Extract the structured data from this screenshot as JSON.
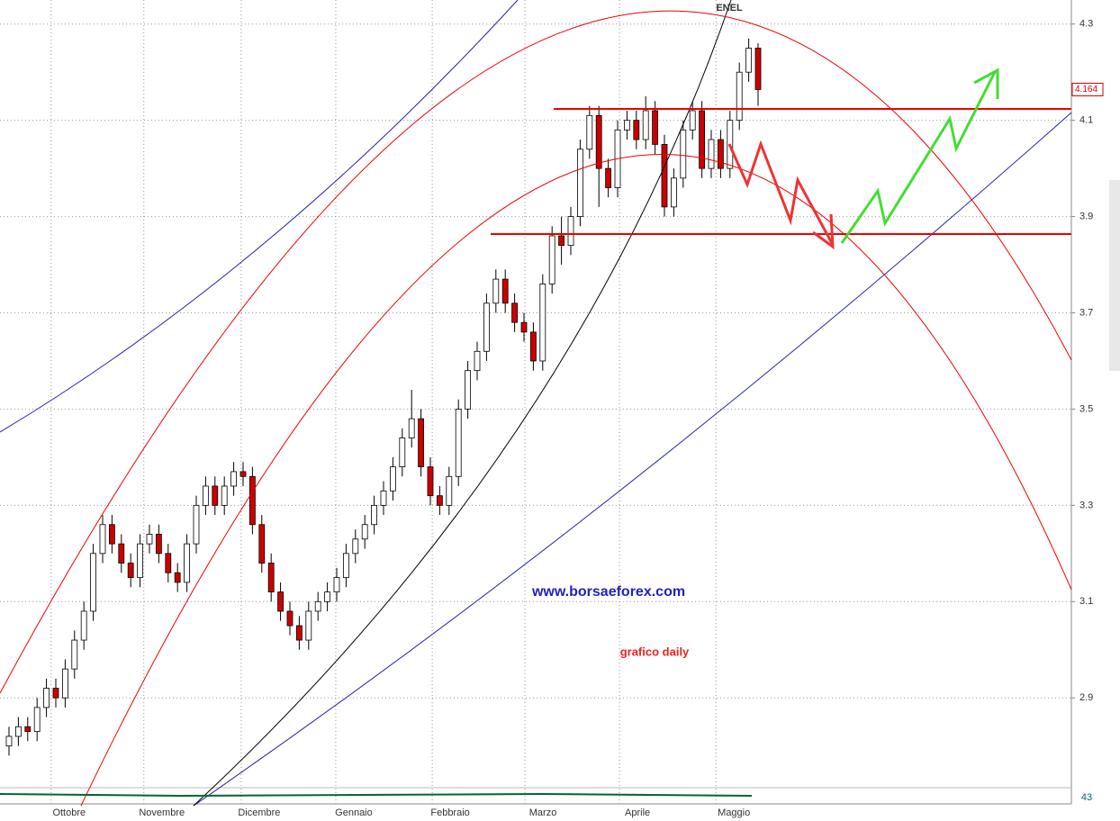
{
  "chart_data": {
    "type": "candlestick",
    "title": "ENEL",
    "annotations": [
      "www.borsaeforex.com",
      "grafico daily"
    ],
    "last_value": 4.164,
    "indicator_value": 43,
    "colors": {
      "up": "#ffffff",
      "down": "#cc0000",
      "outline": "#000000"
    },
    "grid": true,
    "xlim": [
      -0.96,
      113.46
    ],
    "xticks": [
      {
        "value": 4.5,
        "label": "Ottobre"
      },
      {
        "value": 14.4,
        "label": "Novembre"
      },
      {
        "value": 24.8,
        "label": "Dicembre"
      },
      {
        "value": 34.9,
        "label": "Gennaio"
      },
      {
        "value": 45.2,
        "label": "Febbraio"
      },
      {
        "value": 55.1,
        "label": "Marzo"
      },
      {
        "value": 65.2,
        "label": "Aprile"
      },
      {
        "value": 75.5,
        "label": "Maggio"
      }
    ],
    "ylim": [
      2.704,
      4.35
    ],
    "yticks": [
      2.9,
      3.1,
      3.3,
      3.5,
      3.7,
      3.9,
      4.1,
      4.3
    ],
    "ohlc": {
      "open": [
        2.8,
        2.82,
        2.84,
        2.83,
        2.88,
        2.92,
        2.9,
        2.96,
        3.02,
        3.08,
        3.2,
        3.26,
        3.22,
        3.18,
        3.15,
        3.22,
        3.24,
        3.2,
        3.16,
        3.14,
        3.22,
        3.3,
        3.34,
        3.3,
        3.34,
        3.37,
        3.36,
        3.26,
        3.18,
        3.12,
        3.08,
        3.05,
        3.02,
        3.08,
        3.1,
        3.12,
        3.15,
        3.2,
        3.23,
        3.26,
        3.3,
        3.33,
        3.38,
        3.44,
        3.48,
        3.38,
        3.32,
        3.3,
        3.36,
        3.5,
        3.58,
        3.62,
        3.72,
        3.77,
        3.72,
        3.68,
        3.66,
        3.6,
        3.76,
        3.86,
        3.84,
        3.9,
        4.04,
        4.11,
        4.0,
        3.96,
        4.08,
        4.1,
        4.06,
        4.12,
        4.05,
        3.92,
        3.98,
        4.08,
        4.12,
        4.0,
        4.06,
        4.0,
        4.1,
        4.2,
        4.25
      ],
      "high": [
        2.84,
        2.86,
        2.86,
        2.9,
        2.94,
        2.94,
        2.98,
        3.04,
        3.1,
        3.22,
        3.28,
        3.28,
        3.24,
        3.2,
        3.24,
        3.26,
        3.26,
        3.22,
        3.18,
        3.24,
        3.32,
        3.36,
        3.36,
        3.36,
        3.39,
        3.39,
        3.38,
        3.28,
        3.2,
        3.14,
        3.1,
        3.07,
        3.1,
        3.12,
        3.14,
        3.17,
        3.22,
        3.25,
        3.28,
        3.32,
        3.35,
        3.4,
        3.46,
        3.54,
        3.5,
        3.4,
        3.34,
        3.38,
        3.52,
        3.6,
        3.64,
        3.74,
        3.79,
        3.79,
        3.74,
        3.7,
        3.68,
        3.78,
        3.88,
        3.9,
        3.92,
        4.06,
        4.13,
        4.13,
        4.02,
        4.1,
        4.12,
        4.12,
        4.15,
        4.14,
        4.07,
        4.0,
        4.1,
        4.14,
        4.14,
        4.08,
        4.08,
        4.12,
        4.22,
        4.27,
        4.26
      ],
      "low": [
        2.78,
        2.8,
        2.81,
        2.81,
        2.86,
        2.88,
        2.88,
        2.94,
        3.0,
        3.06,
        3.18,
        3.2,
        3.16,
        3.13,
        3.13,
        3.2,
        3.18,
        3.14,
        3.12,
        3.12,
        3.2,
        3.28,
        3.28,
        3.28,
        3.32,
        3.34,
        3.24,
        3.16,
        3.1,
        3.06,
        3.03,
        3.0,
        3.0,
        3.06,
        3.08,
        3.1,
        3.13,
        3.18,
        3.21,
        3.24,
        3.28,
        3.31,
        3.36,
        3.42,
        3.36,
        3.3,
        3.28,
        3.28,
        3.34,
        3.48,
        3.56,
        3.6,
        3.7,
        3.7,
        3.66,
        3.64,
        3.58,
        3.58,
        3.74,
        3.8,
        3.82,
        3.88,
        4.02,
        3.92,
        3.94,
        3.94,
        4.06,
        4.04,
        4.04,
        4.03,
        3.9,
        3.9,
        3.96,
        4.06,
        3.98,
        3.98,
        3.98,
        3.98,
        4.08,
        4.18,
        4.13
      ],
      "close": [
        2.82,
        2.84,
        2.83,
        2.88,
        2.92,
        2.9,
        2.96,
        3.02,
        3.08,
        3.2,
        3.26,
        3.22,
        3.18,
        3.15,
        3.22,
        3.24,
        3.2,
        3.16,
        3.14,
        3.22,
        3.3,
        3.34,
        3.3,
        3.34,
        3.37,
        3.36,
        3.26,
        3.18,
        3.12,
        3.08,
        3.05,
        3.02,
        3.08,
        3.1,
        3.12,
        3.15,
        3.2,
        3.23,
        3.26,
        3.3,
        3.33,
        3.38,
        3.44,
        3.48,
        3.38,
        3.32,
        3.3,
        3.36,
        3.5,
        3.58,
        3.62,
        3.72,
        3.77,
        3.72,
        3.68,
        3.66,
        3.6,
        3.76,
        3.86,
        3.84,
        3.9,
        4.04,
        4.11,
        4.0,
        3.96,
        4.08,
        4.1,
        4.06,
        4.12,
        4.05,
        3.92,
        3.98,
        4.08,
        4.12,
        4.0,
        4.06,
        4.0,
        4.1,
        4.2,
        4.25,
        4.164
      ]
    }
  }
}
